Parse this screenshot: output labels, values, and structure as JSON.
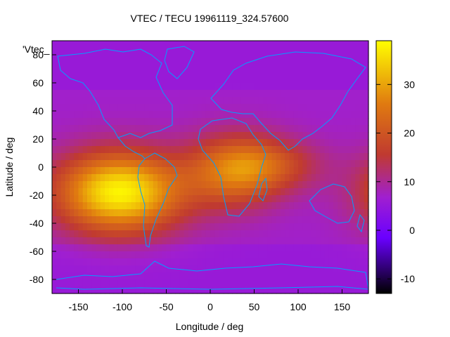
{
  "chart_data": {
    "type": "heatmap",
    "title": "VTEC / TECU 19961119_324.57600",
    "xlabel": "Longitude / deg",
    "ylabel": "Latitude / deg",
    "overlay_label": "'Vtec_",
    "xlim": [
      -180,
      180
    ],
    "ylim": [
      -90,
      90
    ],
    "xticks": [
      -150,
      -100,
      -50,
      0,
      50,
      100,
      150
    ],
    "yticks": [
      -80,
      -60,
      -40,
      -20,
      0,
      20,
      40,
      60,
      80
    ],
    "colorbar": {
      "range": [
        -13,
        39
      ],
      "ticks": [
        -10,
        0,
        10,
        20,
        30
      ],
      "palette": "black-blue-purple-red-orange-yellow"
    },
    "background_value": 7,
    "features": [
      {
        "name": "pacific-south-america-peak",
        "lon": -103,
        "lat": -18,
        "peak": 38,
        "sigma_lon": 50,
        "sigma_lat": 20
      },
      {
        "name": "africa-peak",
        "lon": 27,
        "lat": -3,
        "peak": 24,
        "sigma_lon": 38,
        "sigma_lat": 18
      },
      {
        "name": "indian-ocean-band",
        "lon": 72,
        "lat": 2,
        "peak": 16,
        "sigma_lon": 40,
        "sigma_lat": 13
      }
    ],
    "coastline_color": "#00a0ff",
    "grid": false
  }
}
